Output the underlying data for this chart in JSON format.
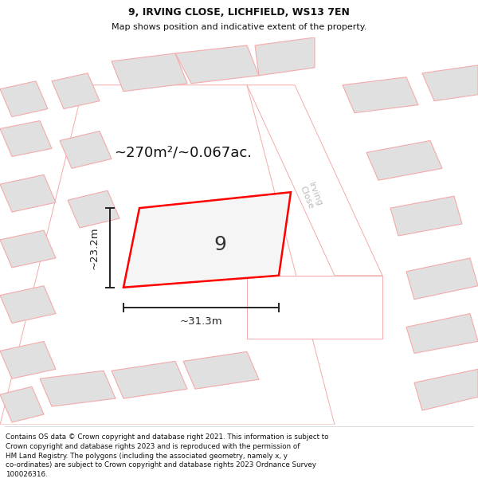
{
  "title": "9, IRVING CLOSE, LICHFIELD, WS13 7EN",
  "subtitle": "Map shows position and indicative extent of the property.",
  "footer": "Contains OS data © Crown copyright and database right 2021. This information is subject to\nCrown copyright and database rights 2023 and is reproduced with the permission of\nHM Land Registry. The polygons (including the associated geometry, namely x, y\nco-ordinates) are subject to Crown copyright and database rights 2023 Ordnance Survey\n100026316.",
  "area_label": "~270m²/~0.067ac.",
  "width_label": "~31.3m",
  "height_label": "~23.2m",
  "plot_number": "9",
  "background_color": "#ffffff",
  "map_bg_color": "#f0f0f0",
  "plot_outline_color": "#ff0000",
  "building_fill": "#e0e0e0",
  "building_outline": "#f4aaaa",
  "road_fill": "#ffffff",
  "road_outline": "#f4aaaa",
  "dim_color": "#222222",
  "street_color": "#bbbbbb",
  "street_name": "Irving\nClose",
  "title_fontsize": 9.0,
  "subtitle_fontsize": 8.0,
  "footer_fontsize": 6.3,
  "area_fontsize": 13,
  "plot_num_fontsize": 18,
  "dim_fontsize": 9.5
}
